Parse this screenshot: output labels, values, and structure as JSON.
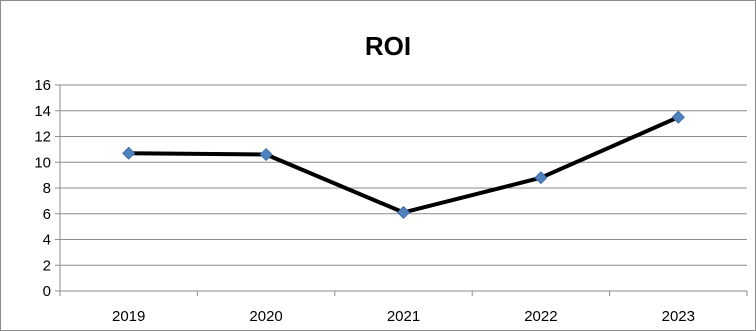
{
  "chart_data": {
    "type": "line",
    "title": "ROI",
    "xlabel": "",
    "ylabel": "",
    "categories": [
      "2019",
      "2020",
      "2021",
      "2022",
      "2023"
    ],
    "series": [
      {
        "values": [
          10.7,
          10.6,
          6.1,
          8.8,
          13.5
        ]
      }
    ],
    "ylim": [
      0,
      16
    ],
    "yticks": [
      "0",
      "2",
      "4",
      "6",
      "8",
      "10",
      "12",
      "14",
      "16"
    ],
    "grid": true,
    "legend": "none",
    "colors": {
      "line": "#000000",
      "marker": "#4f81bd",
      "grid": "#8c8c8c"
    }
  }
}
